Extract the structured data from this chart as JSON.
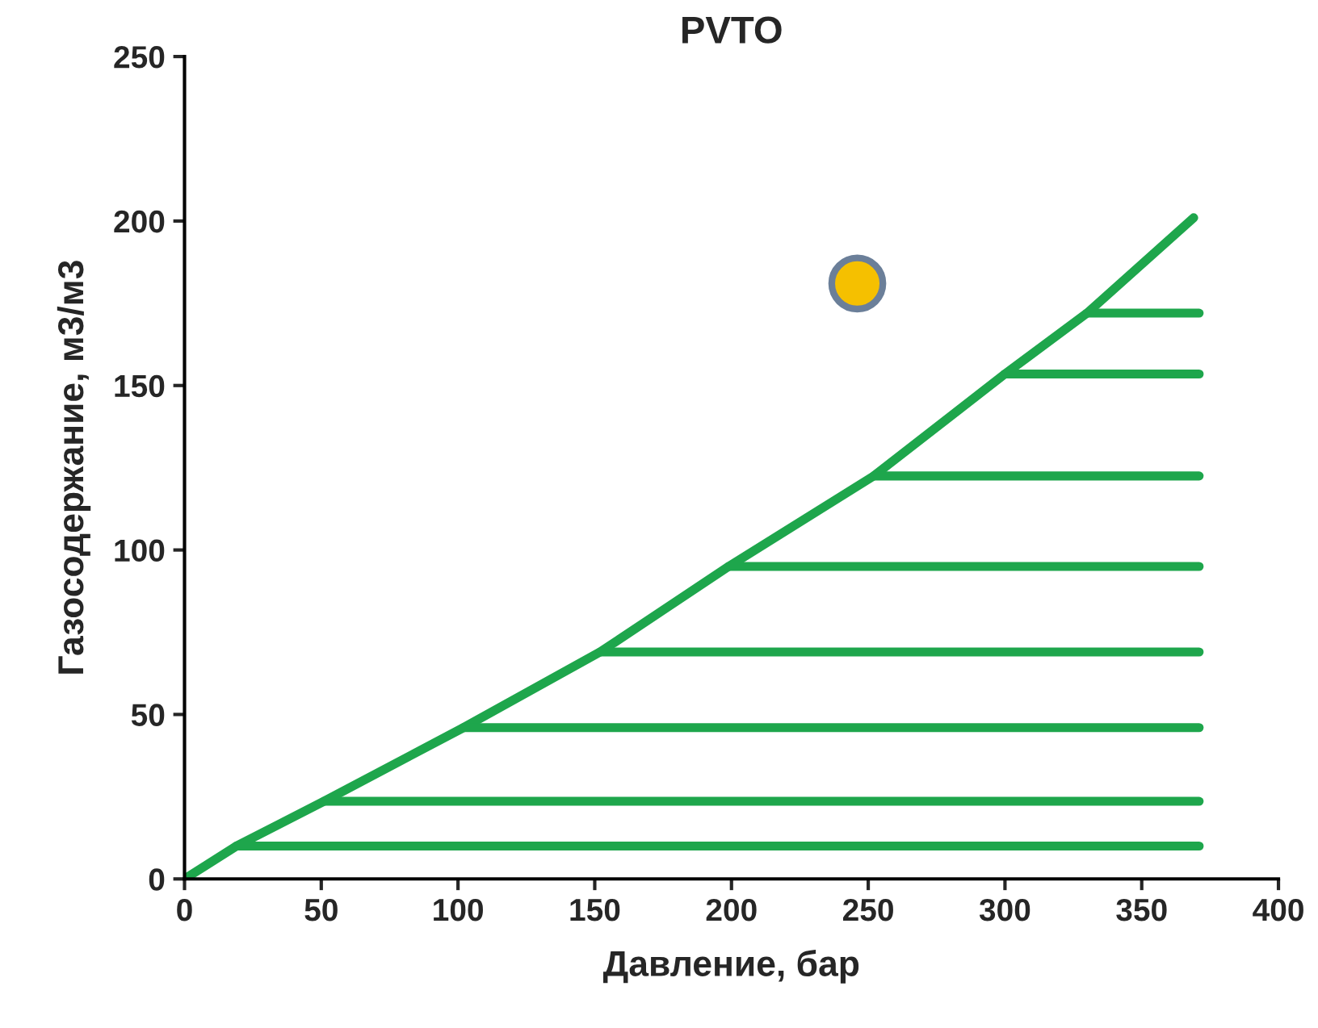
{
  "chart_data": {
    "type": "line",
    "title": "PVTO",
    "xlabel": "Давление, бар",
    "ylabel": "Газосодержание, м3/м3",
    "xlim": [
      0,
      400
    ],
    "ylim": [
      0,
      250
    ],
    "xticks": [
      0,
      50,
      100,
      150,
      200,
      250,
      300,
      350,
      400
    ],
    "yticks": [
      0,
      50,
      100,
      150,
      200,
      250
    ],
    "grid": false,
    "marker": "none",
    "line_style": "solid",
    "series": [
      {
        "color": "#1ea64c",
        "x": [
          0,
          19,
          51,
          102,
          152,
          199,
          252,
          300,
          330,
          369
        ],
        "values": [
          0,
          10,
          23.6,
          46,
          69,
          95,
          122.5,
          153.5,
          172,
          201
        ]
      },
      {
        "color": "#1ea64c",
        "x": [
          19,
          371
        ],
        "values": [
          10,
          10
        ]
      },
      {
        "color": "#1ea64c",
        "x": [
          51,
          371
        ],
        "values": [
          23.6,
          23.6
        ]
      },
      {
        "color": "#1ea64c",
        "x": [
          102,
          371
        ],
        "values": [
          46,
          46
        ]
      },
      {
        "color": "#1ea64c",
        "x": [
          152,
          371
        ],
        "values": [
          69,
          69
        ]
      },
      {
        "color": "#1ea64c",
        "x": [
          199,
          371
        ],
        "values": [
          95,
          95
        ]
      },
      {
        "color": "#1ea64c",
        "x": [
          252,
          371
        ],
        "values": [
          122.5,
          122.5
        ]
      },
      {
        "color": "#1ea64c",
        "x": [
          300,
          371
        ],
        "values": [
          153.5,
          153.5
        ]
      },
      {
        "color": "#1ea64c",
        "x": [
          330,
          371
        ],
        "values": [
          172,
          172
        ]
      },
      {
        "type": "scatter",
        "marker": "circle",
        "color": "#f5c000",
        "x": [
          246
        ],
        "values": [
          181
        ]
      }
    ]
  }
}
